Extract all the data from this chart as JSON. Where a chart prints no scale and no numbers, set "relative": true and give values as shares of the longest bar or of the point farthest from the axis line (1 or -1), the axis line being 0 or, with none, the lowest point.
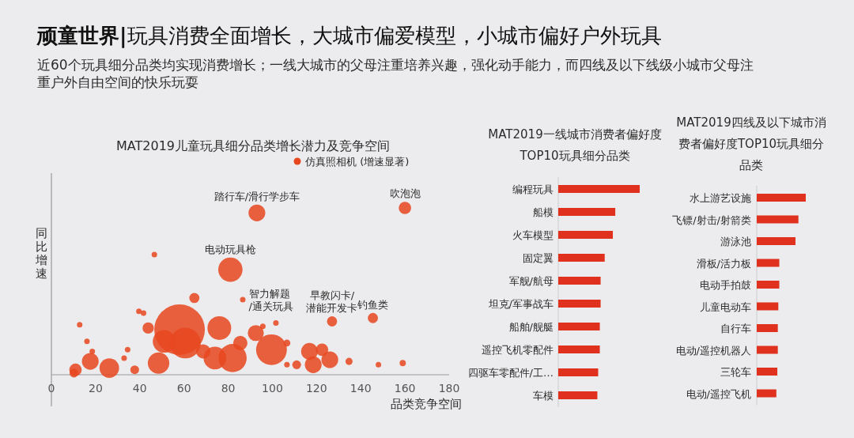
{
  "chart_data": [
    {
      "type": "other",
      "title": "顽童世界|玩具消费全面增长，大城市偏爱模型，小城市偏好户外玩具",
      "subtitle": "近60个玩具细分品类均实现消费增长；一线大城市的父母注重培养兴趣，强化动手能力，而四线及以下线级小城市父母注重户外自由空间的快乐玩耍"
    },
    {
      "type": "bubble",
      "title": "MAT2019儿童玩具细分品类增长潜力及竞争空间",
      "xlabel": "品类竞争空间",
      "ylabel": "同比增速",
      "relative": true,
      "xlim": [
        0,
        180
      ],
      "xticks": [
        0,
        20,
        40,
        60,
        80,
        100,
        120,
        140,
        160,
        180
      ],
      "grid": false,
      "series": [
        {
          "color": "#e8461e",
          "x": [
            93,
            160,
            81,
            86.6,
            127,
            145.5,
            64.7,
            58,
            60.6,
            76,
            43.8,
            92.5,
            99.6,
            82,
            74,
            48.5,
            26.2,
            17.6,
            10.9,
            10.2,
            37.7,
            116.8,
            122.5,
            126,
            118.5,
            111,
            134.7,
            159,
            148,
            101.6,
            106.6,
            85.5,
            95.7,
            46.6,
            41.7,
            39.6,
            32.9,
            12.8,
            16.1,
            18.5,
            34.5,
            106.6,
            68.7,
            51
          ],
          "values": [
            0.97,
            1,
            0.63,
            0.45,
            0.32,
            0.34,
            0.46,
            0.27,
            0.19,
            0.28,
            0.28,
            0.25,
            0.15,
            0.1,
            0.1,
            0.07,
            0.04,
            0.08,
            0.03,
            0.01,
            0.03,
            0.14,
            0.15,
            0.09,
            0.06,
            0.06,
            0.08,
            0.07,
            0.06,
            0.31,
            0.19,
            0.19,
            0.29,
            0.72,
            0.37,
            0.38,
            0.1,
            0.3,
            0.2,
            0.14,
            0.15,
            0.06,
            0.14,
            0.2
          ],
          "sizes": [
            0.11,
            0.06,
            0.23,
            0.012,
            0.04,
            0.04,
            0.04,
            1,
            0.37,
            0.22,
            0.05,
            0.1,
            0.37,
            0.31,
            0.2,
            0.18,
            0.15,
            0.11,
            0.06,
            0.03,
            0.03,
            0.11,
            0.06,
            0.11,
            0.11,
            0.03,
            0.02,
            0.015,
            0.012,
            0.012,
            0.018,
            0.08,
            0.012,
            0.012,
            0.012,
            0.012,
            0.012,
            0.012,
            0.012,
            0.012,
            0.012,
            0.012,
            0.08,
            0.2
          ]
        }
      ],
      "annotations": [
        {
          "text": "踏行车/滑行学步车",
          "x": 93,
          "y": 0.97
        },
        {
          "text": "吹泡泡",
          "x": 160,
          "y": 1
        },
        {
          "text": "电动玩具枪",
          "x": 81,
          "y": 0.63
        },
        {
          "text": "智力解题\n/通关玩具",
          "x": 86.6,
          "y": 0.45
        },
        {
          "text": "早教闪卡/\n潜能开发卡",
          "x": 127,
          "y": 0.32
        },
        {
          "text": "钓鱼类",
          "x": 145.5,
          "y": 0.34
        },
        "仿真照相机 (增速显著)"
      ]
    },
    {
      "type": "bar",
      "orientation": "horizontal",
      "relative": true,
      "title": "MAT2019一线城市消费者偏好度TOP10玩具细分品类",
      "color": "#e0301e",
      "categories": [
        "编程玩具",
        "船模",
        "火车模型",
        "固定翼",
        "军舰/航母",
        "坦克/军事战车",
        "船舶/舰艇",
        "遥控飞机零配件",
        "四驱车零配件/工…",
        "车模"
      ],
      "values": [
        1,
        0.7,
        0.67,
        0.57,
        0.52,
        0.52,
        0.51,
        0.51,
        0.49,
        0.48
      ]
    },
    {
      "type": "bar",
      "orientation": "horizontal",
      "relative": true,
      "title": "MAT2019四线及以下城市消费者偏好度TOP10玩具细分品类",
      "color": "#e0301e",
      "categories": [
        "水上游艺设施",
        "飞镖/射击/射箭类",
        "游泳池",
        "滑板/活力板",
        "电动手拍鼓",
        "儿童电动车",
        "自行车",
        "电动/遥控机器人",
        "三轮车",
        "电动/遥控飞机"
      ],
      "values": [
        1,
        0.85,
        0.79,
        0.46,
        0.46,
        0.44,
        0.43,
        0.43,
        0.42,
        0.4
      ]
    }
  ]
}
